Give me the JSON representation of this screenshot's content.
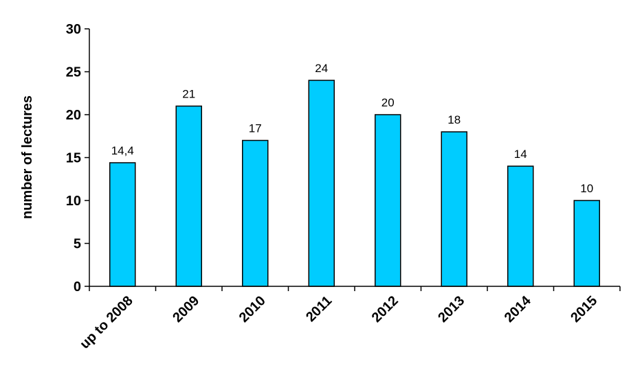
{
  "chart_data": {
    "type": "bar",
    "categories": [
      "up to 2008",
      "2009",
      "2010",
      "2011",
      "2012",
      "2013",
      "2014",
      "2015"
    ],
    "values": [
      14.4,
      21,
      17,
      24,
      20,
      18,
      14,
      10
    ],
    "data_labels": [
      "14,4",
      "21",
      "17",
      "24",
      "20",
      "18",
      "14",
      "10"
    ],
    "title": "",
    "xlabel": "",
    "ylabel": "number of lectures",
    "ylim": [
      0,
      30
    ],
    "yticks": [
      0,
      5,
      10,
      15,
      20,
      25,
      30
    ],
    "grid": false,
    "bar_color": "#00CCFF",
    "bar_edge_color": "#000000"
  }
}
